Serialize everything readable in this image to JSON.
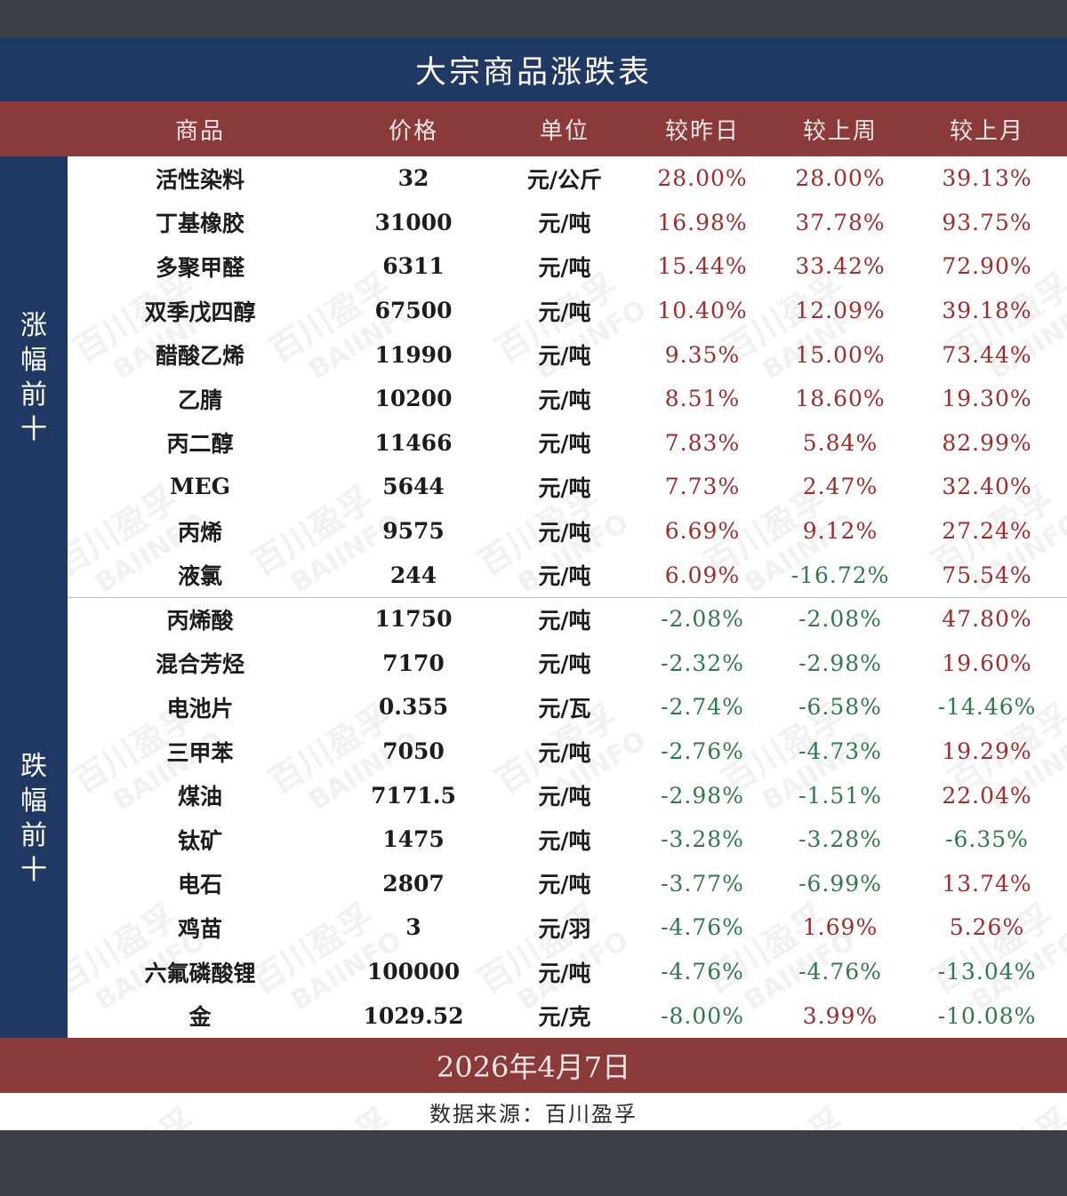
{
  "title": "大宗商品涨跌表",
  "columns": [
    "商品",
    "价格",
    "单位",
    "较昨日",
    "较上周",
    "较上月"
  ],
  "groups": {
    "rise": "涨幅前十",
    "fall": "跌幅前十"
  },
  "watermark": {
    "cn": "百川盈孚",
    "en": "BAIINFO"
  },
  "rows": [
    {
      "name": "活性染料",
      "price": "32",
      "unit": "元/公斤",
      "d": "28.00%",
      "w": "28.00%",
      "m": "39.13%"
    },
    {
      "name": "丁基橡胶",
      "price": "31000",
      "unit": "元/吨",
      "d": "16.98%",
      "w": "37.78%",
      "m": "93.75%"
    },
    {
      "name": "多聚甲醛",
      "price": "6311",
      "unit": "元/吨",
      "d": "15.44%",
      "w": "33.42%",
      "m": "72.90%"
    },
    {
      "name": "双季戊四醇",
      "price": "67500",
      "unit": "元/吨",
      "d": "10.40%",
      "w": "12.09%",
      "m": "39.18%"
    },
    {
      "name": "醋酸乙烯",
      "price": "11990",
      "unit": "元/吨",
      "d": "9.35%",
      "w": "15.00%",
      "m": "73.44%"
    },
    {
      "name": "乙腈",
      "price": "10200",
      "unit": "元/吨",
      "d": "8.51%",
      "w": "18.60%",
      "m": "19.30%"
    },
    {
      "name": "丙二醇",
      "price": "11466",
      "unit": "元/吨",
      "d": "7.83%",
      "w": "5.84%",
      "m": "82.99%"
    },
    {
      "name": "MEG",
      "price": "5644",
      "unit": "元/吨",
      "d": "7.73%",
      "w": "2.47%",
      "m": "32.40%"
    },
    {
      "name": "丙烯",
      "price": "9575",
      "unit": "元/吨",
      "d": "6.69%",
      "w": "9.12%",
      "m": "27.24%"
    },
    {
      "name": "液氯",
      "price": "244",
      "unit": "元/吨",
      "d": "6.09%",
      "w": "-16.72%",
      "m": "75.54%"
    },
    {
      "name": "丙烯酸",
      "price": "11750",
      "unit": "元/吨",
      "d": "-2.08%",
      "w": "-2.08%",
      "m": "47.80%"
    },
    {
      "name": "混合芳烃",
      "price": "7170",
      "unit": "元/吨",
      "d": "-2.32%",
      "w": "-2.98%",
      "m": "19.60%"
    },
    {
      "name": "电池片",
      "price": "0.355",
      "unit": "元/瓦",
      "d": "-2.74%",
      "w": "-6.58%",
      "m": "-14.46%"
    },
    {
      "name": "三甲苯",
      "price": "7050",
      "unit": "元/吨",
      "d": "-2.76%",
      "w": "-4.73%",
      "m": "19.29%"
    },
    {
      "name": "煤油",
      "price": "7171.5",
      "unit": "元/吨",
      "d": "-2.98%",
      "w": "-1.51%",
      "m": "22.04%"
    },
    {
      "name": "钛矿",
      "price": "1475",
      "unit": "元/吨",
      "d": "-3.28%",
      "w": "-3.28%",
      "m": "-6.35%"
    },
    {
      "name": "电石",
      "price": "2807",
      "unit": "元/吨",
      "d": "-3.77%",
      "w": "-6.99%",
      "m": "13.74%"
    },
    {
      "name": "鸡苗",
      "price": "3",
      "unit": "元/羽",
      "d": "-4.76%",
      "w": "1.69%",
      "m": "5.26%"
    },
    {
      "name": "六氟磷酸锂",
      "price": "100000",
      "unit": "元/吨",
      "d": "-4.76%",
      "w": "-4.76%",
      "m": "-13.04%"
    },
    {
      "name": "金",
      "price": "1029.52",
      "unit": "元/克",
      "d": "-8.00%",
      "w": "3.99%",
      "m": "-10.08%"
    }
  ],
  "date": "2026年4月7日",
  "source": "数据来源：百川盈孚",
  "colors": {
    "title_bg": "#1f3864",
    "header_bg": "#8b3a3a",
    "positive": "#a32a2a",
    "negative": "#2e7a48"
  }
}
